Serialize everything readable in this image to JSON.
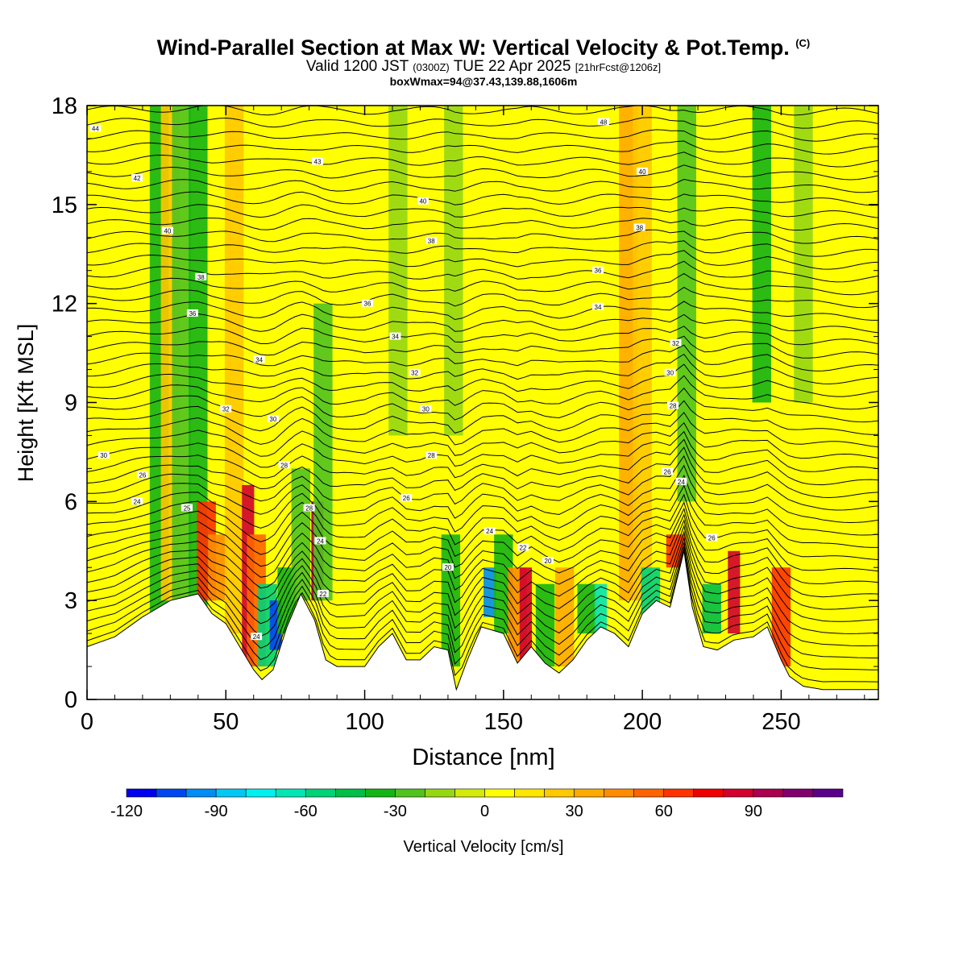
{
  "title": "Wind-Parallel Section at Max W: Vertical Velocity & Pot.Temp.",
  "title_mark": "(C)",
  "subtitle_valid": "Valid 1200 JST",
  "subtitle_utc": "(0300Z)",
  "subtitle_date": "TUE 22 Apr 2025",
  "subtitle_fcst": "[21hrFcst@1206z]",
  "subtitle_box": "boxWmax=94@37.43,139.88,1606m",
  "chart_data": {
    "type": "heatmap",
    "xlabel": "Distance [nm]",
    "ylabel": "Height [Kft MSL]",
    "xlim": [
      0,
      285
    ],
    "ylim": [
      0,
      18
    ],
    "x_ticks": [
      0,
      50,
      100,
      150,
      200,
      250
    ],
    "y_ticks": [
      0,
      3,
      6,
      9,
      12,
      15,
      18
    ],
    "colorbar_label": "Vertical Velocity [cm/s]",
    "colorbar_ticks": [
      -120,
      -90,
      -60,
      -30,
      0,
      30,
      60,
      90
    ],
    "colorbar_levels": [
      -120,
      -110,
      -100,
      -90,
      -80,
      -70,
      -60,
      -50,
      -40,
      -30,
      -20,
      -10,
      0,
      10,
      20,
      30,
      40,
      50,
      60,
      70,
      80,
      90,
      100,
      110
    ],
    "colorbar_colors": [
      "#0000f0",
      "#0046f0",
      "#008cf5",
      "#00c8f5",
      "#00f0f0",
      "#00e6b4",
      "#00d278",
      "#00be46",
      "#14b414",
      "#50c31e",
      "#96d714",
      "#d2eb0a",
      "#ffff00",
      "#ffe600",
      "#ffc800",
      "#ffaa00",
      "#ff8c00",
      "#ff6400",
      "#ff3200",
      "#f00000",
      "#d2002d",
      "#aa0050",
      "#82006e",
      "#5a008c"
    ],
    "terrain_kft": [
      [
        0,
        1.6
      ],
      [
        10,
        1.9
      ],
      [
        20,
        2.5
      ],
      [
        30,
        3.0
      ],
      [
        40,
        3.2
      ],
      [
        45,
        2.6
      ],
      [
        50,
        2.3
      ],
      [
        55,
        1.6
      ],
      [
        60,
        0.9
      ],
      [
        63,
        0.6
      ],
      [
        67,
        0.9
      ],
      [
        72,
        2.2
      ],
      [
        77,
        3.2
      ],
      [
        82,
        2.4
      ],
      [
        86,
        1.2
      ],
      [
        90,
        1.0
      ],
      [
        100,
        1.0
      ],
      [
        105,
        1.6
      ],
      [
        110,
        2.0
      ],
      [
        115,
        1.2
      ],
      [
        120,
        1.2
      ],
      [
        125,
        1.6
      ],
      [
        130,
        1.5
      ],
      [
        133,
        0.3
      ],
      [
        137,
        1.2
      ],
      [
        142,
        2.2
      ],
      [
        150,
        2.0
      ],
      [
        155,
        1.1
      ],
      [
        160,
        1.6
      ],
      [
        165,
        1.1
      ],
      [
        170,
        0.8
      ],
      [
        175,
        1.2
      ],
      [
        180,
        1.8
      ],
      [
        185,
        2.2
      ],
      [
        190,
        2.0
      ],
      [
        195,
        1.6
      ],
      [
        200,
        2.6
      ],
      [
        205,
        3.0
      ],
      [
        210,
        2.8
      ],
      [
        215,
        4.5
      ],
      [
        218,
        2.8
      ],
      [
        222,
        1.6
      ],
      [
        227,
        1.5
      ],
      [
        233,
        1.8
      ],
      [
        240,
        1.9
      ],
      [
        245,
        2.2
      ],
      [
        250,
        1.2
      ],
      [
        253,
        0.7
      ],
      [
        258,
        0.4
      ],
      [
        265,
        0.3
      ],
      [
        285,
        0.3
      ]
    ],
    "vv_cells": [
      {
        "x": 26,
        "z0": 0,
        "z1": 18,
        "v": -40
      },
      {
        "x": 30,
        "z0": 3,
        "z1": 18,
        "v": 20
      },
      {
        "x": 34,
        "z0": 0,
        "z1": 18,
        "v": -30
      },
      {
        "x": 40,
        "z0": 0,
        "z1": 18,
        "v": -40
      },
      {
        "x": 43,
        "z0": 3,
        "z1": 6,
        "v": 60
      },
      {
        "x": 47,
        "z0": 3,
        "z1": 5,
        "v": 40
      },
      {
        "x": 53,
        "z0": 2,
        "z1": 18,
        "v": 20
      },
      {
        "x": 58,
        "z0": 1,
        "z1": 6.5,
        "v": 80
      },
      {
        "x": 61,
        "z0": 1,
        "z1": 5,
        "v": 50
      },
      {
        "x": 65,
        "z0": 1,
        "z1": 3.5,
        "v": -60
      },
      {
        "x": 68,
        "z0": 1.5,
        "z1": 3,
        "v": -110
      },
      {
        "x": 72,
        "z0": 2,
        "z1": 4,
        "v": -40
      },
      {
        "x": 77,
        "z0": 3,
        "z1": 7,
        "v": -30
      },
      {
        "x": 83,
        "z0": 3,
        "z1": 6,
        "v": 90
      },
      {
        "x": 85,
        "z0": 3,
        "z1": 12,
        "v": -30
      },
      {
        "x": 112,
        "z0": 8,
        "z1": 18,
        "v": -20
      },
      {
        "x": 131,
        "z0": 1,
        "z1": 5,
        "v": -40
      },
      {
        "x": 132,
        "z0": 8,
        "z1": 18,
        "v": -20
      },
      {
        "x": 145,
        "z0": 2.5,
        "z1": 4,
        "v": -100
      },
      {
        "x": 150,
        "z0": 2,
        "z1": 5,
        "v": -40
      },
      {
        "x": 155,
        "z0": 1,
        "z1": 4,
        "v": 40
      },
      {
        "x": 158,
        "z0": 1,
        "z1": 4,
        "v": 80
      },
      {
        "x": 165,
        "z0": 1,
        "z1": 3.5,
        "v": -40
      },
      {
        "x": 172,
        "z0": 1,
        "z1": 4,
        "v": 30
      },
      {
        "x": 180,
        "z0": 2,
        "z1": 3.5,
        "v": -40
      },
      {
        "x": 185,
        "z0": 2,
        "z1": 3.5,
        "v": -70
      },
      {
        "x": 195,
        "z0": 3,
        "z1": 18,
        "v": 30
      },
      {
        "x": 200,
        "z0": 3,
        "z1": 18,
        "v": 20
      },
      {
        "x": 203,
        "z0": 2.5,
        "z1": 4,
        "v": -60
      },
      {
        "x": 212,
        "z0": 4,
        "z1": 5,
        "v": 60
      },
      {
        "x": 216,
        "z0": 6,
        "z1": 18,
        "v": -30
      },
      {
        "x": 225,
        "z0": 2,
        "z1": 3.5,
        "v": -50
      },
      {
        "x": 233,
        "z0": 2,
        "z1": 4.5,
        "v": 80
      },
      {
        "x": 243,
        "z0": 9,
        "z1": 18,
        "v": -40
      },
      {
        "x": 250,
        "z0": 1,
        "z1": 4,
        "v": 60
      },
      {
        "x": 258,
        "z0": 9,
        "z1": 18,
        "v": -20
      }
    ],
    "theta_contour_labels": [
      {
        "x": 3,
        "z": 17.3,
        "text": "44"
      },
      {
        "x": 18,
        "z": 15.8,
        "text": "42"
      },
      {
        "x": 29,
        "z": 14.2,
        "text": "40"
      },
      {
        "x": 41,
        "z": 12.8,
        "text": "38"
      },
      {
        "x": 38,
        "z": 11.7,
        "text": "36"
      },
      {
        "x": 62,
        "z": 10.3,
        "text": "34"
      },
      {
        "x": 50,
        "z": 8.8,
        "text": "32"
      },
      {
        "x": 67,
        "z": 8.5,
        "text": "30"
      },
      {
        "x": 71,
        "z": 7.1,
        "text": "28"
      },
      {
        "x": 20,
        "z": 6.8,
        "text": "26"
      },
      {
        "x": 18,
        "z": 6.0,
        "text": "24"
      },
      {
        "x": 36,
        "z": 5.8,
        "text": "25"
      },
      {
        "x": 6,
        "z": 7.4,
        "text": "30"
      },
      {
        "x": 80,
        "z": 5.8,
        "text": "28"
      },
      {
        "x": 84,
        "z": 4.8,
        "text": "24"
      },
      {
        "x": 85,
        "z": 3.2,
        "text": "22"
      },
      {
        "x": 61,
        "z": 1.9,
        "text": "24"
      },
      {
        "x": 83,
        "z": 16.3,
        "text": "43"
      },
      {
        "x": 121,
        "z": 15.1,
        "text": "40"
      },
      {
        "x": 124,
        "z": 13.9,
        "text": "38"
      },
      {
        "x": 101,
        "z": 12.0,
        "text": "36"
      },
      {
        "x": 111,
        "z": 11.0,
        "text": "34"
      },
      {
        "x": 118,
        "z": 9.9,
        "text": "32"
      },
      {
        "x": 122,
        "z": 8.8,
        "text": "30"
      },
      {
        "x": 124,
        "z": 7.4,
        "text": "28"
      },
      {
        "x": 115,
        "z": 6.1,
        "text": "26"
      },
      {
        "x": 145,
        "z": 5.1,
        "text": "24"
      },
      {
        "x": 157,
        "z": 4.6,
        "text": "22"
      },
      {
        "x": 166,
        "z": 4.2,
        "text": "20"
      },
      {
        "x": 130,
        "z": 4.0,
        "text": "20"
      },
      {
        "x": 186,
        "z": 17.5,
        "text": "48"
      },
      {
        "x": 200,
        "z": 16.0,
        "text": "40"
      },
      {
        "x": 199,
        "z": 14.3,
        "text": "38"
      },
      {
        "x": 184,
        "z": 13.0,
        "text": "36"
      },
      {
        "x": 184,
        "z": 11.9,
        "text": "34"
      },
      {
        "x": 212,
        "z": 10.8,
        "text": "32"
      },
      {
        "x": 210,
        "z": 9.9,
        "text": "30"
      },
      {
        "x": 211,
        "z": 8.9,
        "text": "28"
      },
      {
        "x": 209,
        "z": 6.9,
        "text": "26"
      },
      {
        "x": 214,
        "z": 6.6,
        "text": "24"
      },
      {
        "x": 225,
        "z": 4.9,
        "text": "26"
      }
    ]
  }
}
